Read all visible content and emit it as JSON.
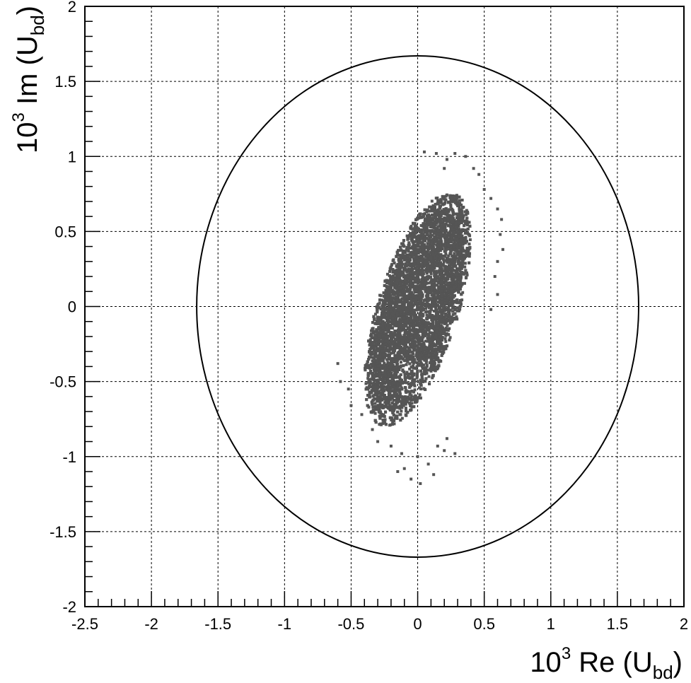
{
  "chart_data": {
    "type": "scatter",
    "title": "",
    "xlabel": {
      "prefix": "10",
      "exponent": "3",
      "main": " Re (U",
      "subscript": "bd",
      "suffix": ")"
    },
    "ylabel": {
      "prefix": "10",
      "exponent": "3",
      "main": " Im (U",
      "subscript": "bd",
      "suffix": ")"
    },
    "xlim": [
      -2.5,
      2
    ],
    "ylim": [
      -2,
      2
    ],
    "grid": true,
    "grid_style": "dashed",
    "x_tick_labels": [
      {
        "value": -2.5,
        "label": "-2.5"
      },
      {
        "value": -2,
        "label": "-2"
      },
      {
        "value": -1.5,
        "label": "-1.5"
      },
      {
        "value": -1,
        "label": "-1"
      },
      {
        "value": -0.5,
        "label": "-0.5"
      },
      {
        "value": 0,
        "label": "0"
      },
      {
        "value": 0.5,
        "label": "0.5"
      },
      {
        "value": 1,
        "label": "1"
      },
      {
        "value": 1.5,
        "label": "1.5"
      },
      {
        "value": 2,
        "label": "2"
      }
    ],
    "y_tick_labels": [
      {
        "value": -2,
        "label": "-2"
      },
      {
        "value": -1.5,
        "label": "-1.5"
      },
      {
        "value": -1,
        "label": "-1"
      },
      {
        "value": -0.5,
        "label": "-0.5"
      },
      {
        "value": 0,
        "label": "0"
      },
      {
        "value": 0.5,
        "label": "0.5"
      },
      {
        "value": 1,
        "label": "1"
      },
      {
        "value": 1.5,
        "label": "1.5"
      },
      {
        "value": 2,
        "label": "2"
      }
    ],
    "bound_ellipse": {
      "center": [
        0,
        0
      ],
      "rx": 1.66,
      "ry": 1.67
    },
    "scatter_region": {
      "center": [
        0.0,
        -0.02
      ],
      "semi_axes": [
        0.3,
        0.82
      ],
      "tilt_deg": -20,
      "approx_point_count": 9000,
      "color": "#555555",
      "outliers": [
        [
          0.05,
          1.03
        ],
        [
          0.14,
          1.02
        ],
        [
          0.22,
          0.98
        ],
        [
          0.28,
          1.02
        ],
        [
          0.36,
          1.0
        ],
        [
          0.42,
          0.92
        ],
        [
          0.2,
          0.92
        ],
        [
          0.46,
          0.88
        ],
        [
          0.5,
          0.78
        ],
        [
          0.55,
          0.72
        ],
        [
          0.6,
          0.65
        ],
        [
          0.63,
          0.58
        ],
        [
          0.62,
          0.48
        ],
        [
          0.64,
          0.38
        ],
        [
          0.6,
          0.3
        ],
        [
          0.58,
          0.2
        ],
        [
          0.6,
          0.08
        ],
        [
          0.55,
          -0.02
        ],
        [
          -0.6,
          -0.38
        ],
        [
          -0.58,
          -0.5
        ],
        [
          -0.52,
          -0.55
        ],
        [
          -0.5,
          -0.66
        ],
        [
          -0.42,
          -0.72
        ],
        [
          -0.34,
          -0.82
        ],
        [
          -0.3,
          -0.9
        ],
        [
          -0.2,
          -0.93
        ],
        [
          -0.12,
          -0.98
        ],
        [
          0.0,
          -1.0
        ],
        [
          0.15,
          -0.93
        ],
        [
          0.2,
          -0.96
        ],
        [
          0.28,
          -0.98
        ],
        [
          0.22,
          -0.88
        ],
        [
          -0.1,
          -1.08
        ],
        [
          -0.05,
          -1.15
        ],
        [
          0.02,
          -1.18
        ],
        [
          0.08,
          -1.05
        ],
        [
          -0.15,
          -1.1
        ],
        [
          0.12,
          -1.12
        ]
      ]
    }
  }
}
